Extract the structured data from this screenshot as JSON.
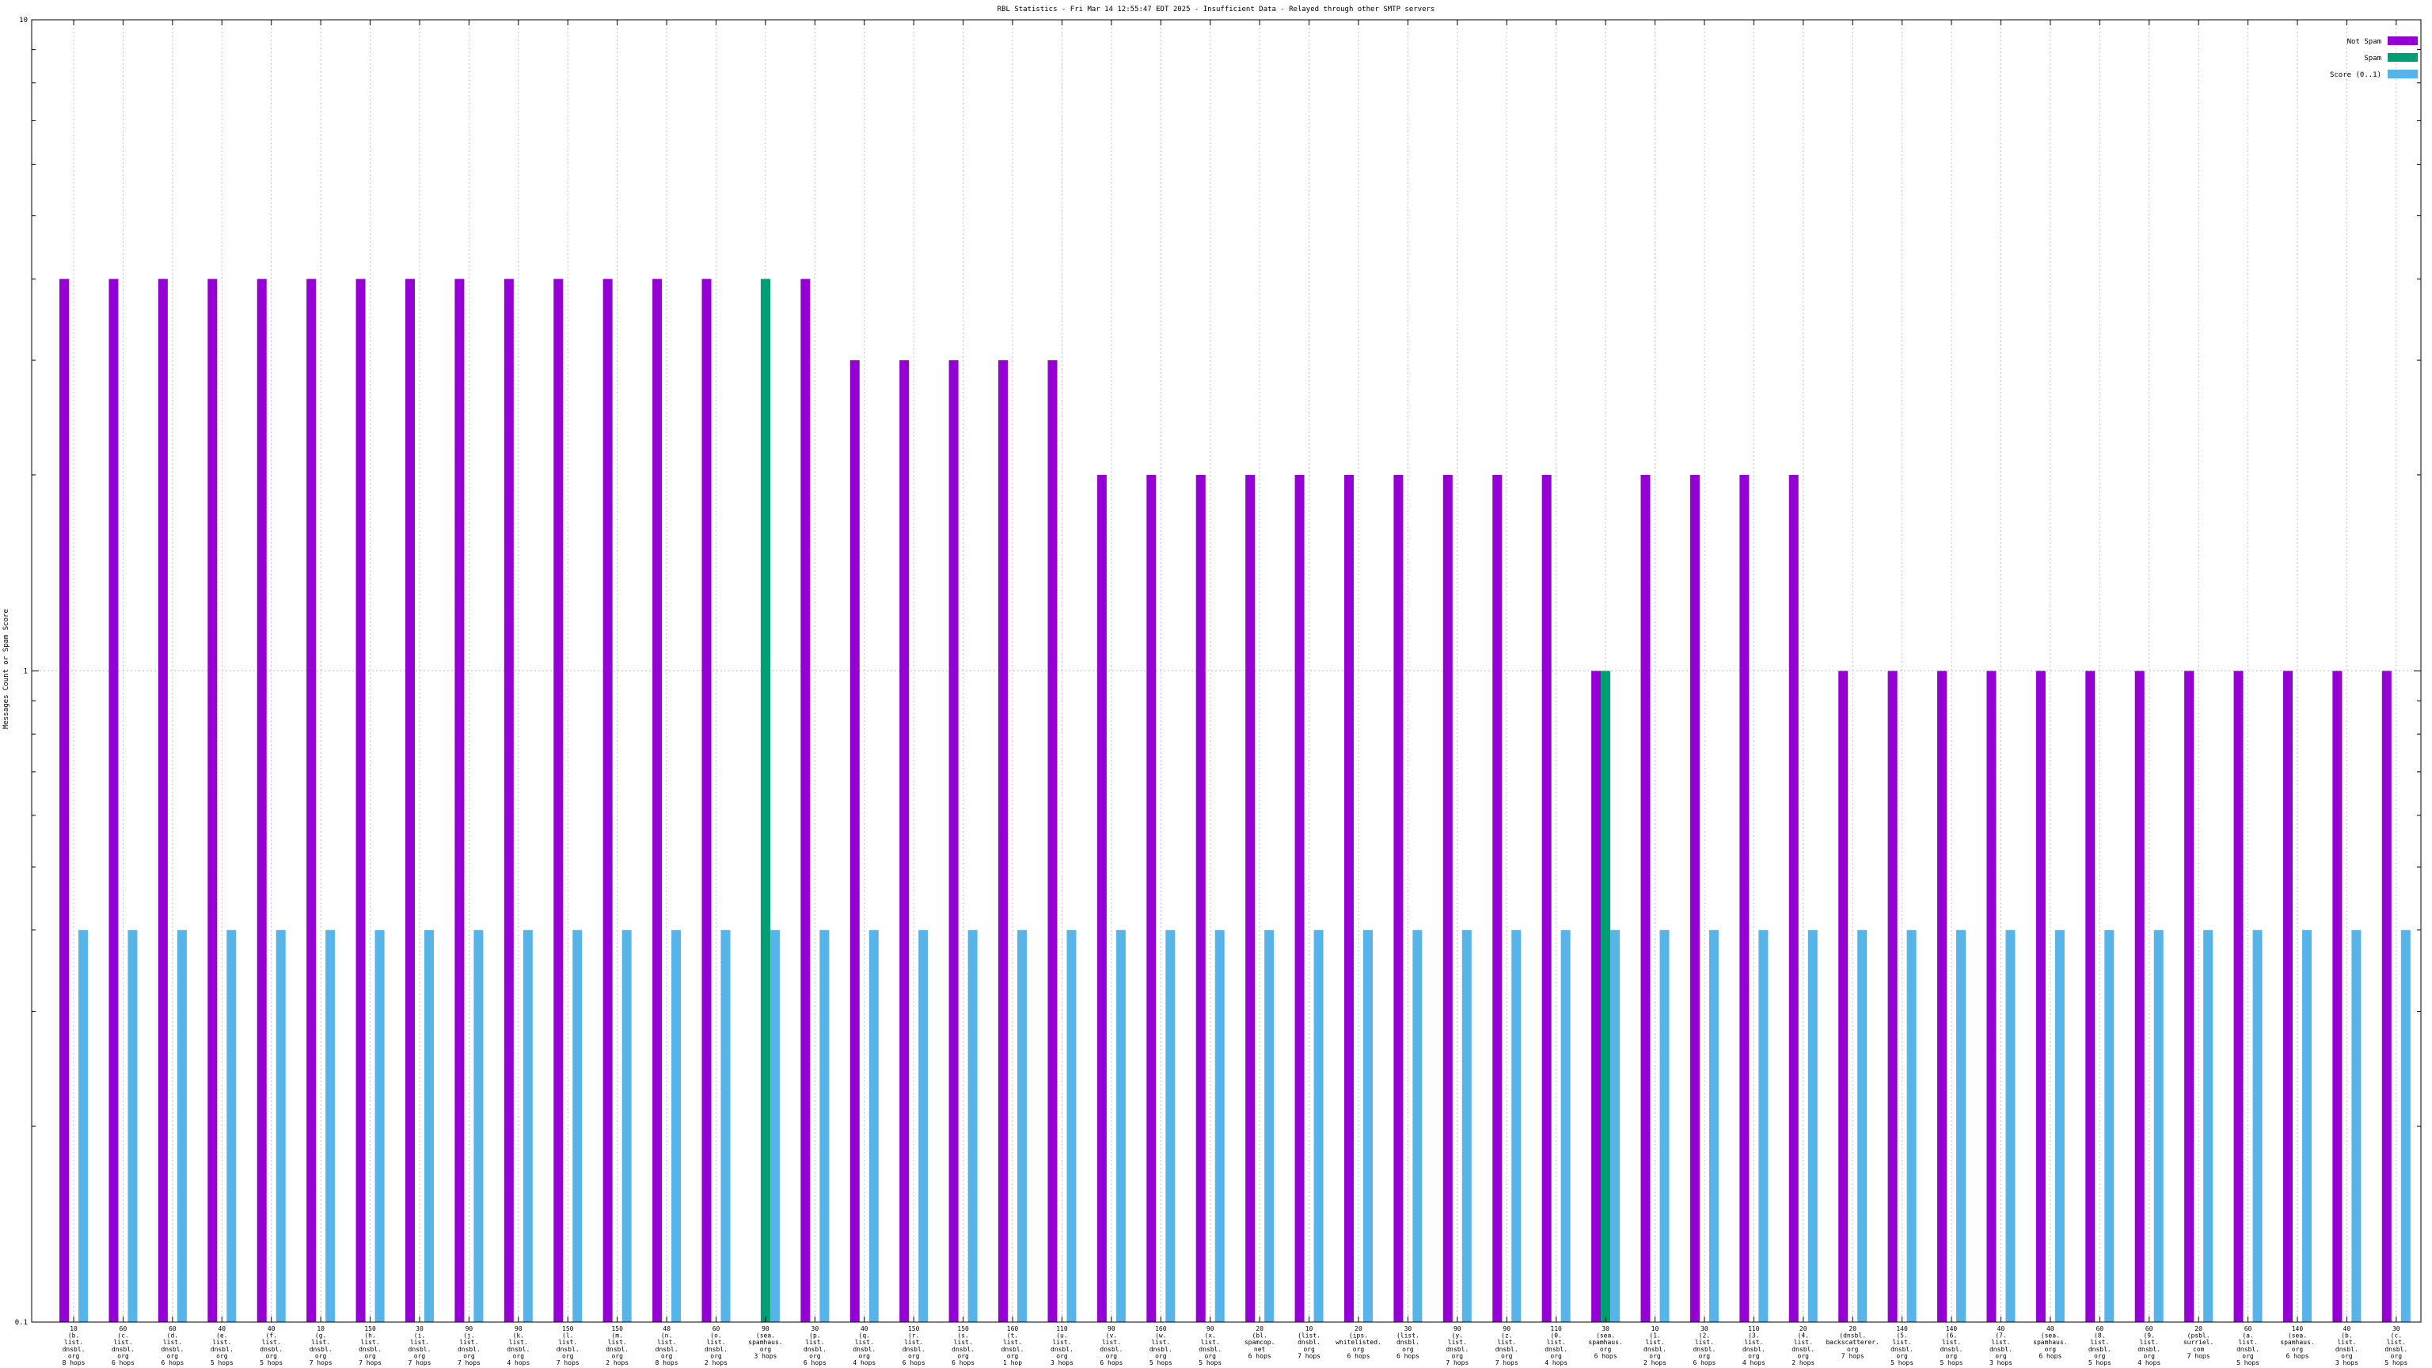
{
  "chart_data": {
    "type": "bar",
    "title": "RBL Statistics - Fri Mar 14 12:55:47 EDT 2025 - Insufficient Data - Relayed through other SMTP servers",
    "ylabel": "Messages Count or Spam Score",
    "y_scale": "log",
    "ylim": [
      0.1,
      10
    ],
    "y_tick_labels": [
      {
        "value": 10,
        "label": "10"
      },
      {
        "value": 1,
        "label": "1"
      },
      {
        "value": 0.1,
        "label": "0.1"
      }
    ],
    "grid": true,
    "legend_position": "top-right",
    "colors": {
      "not_spam": "#9400d3",
      "spam": "#009e73",
      "score": "#56b4e9"
    },
    "series": [
      {
        "name": "Not Spam",
        "color": "#9400d3"
      },
      {
        "name": "Spam",
        "color": "#009e73"
      },
      {
        "name": "Score (0..1)",
        "color": "#56b4e9"
      }
    ],
    "categories": [
      [
        "10",
        "(b.",
        "list.",
        "dnsbl.",
        "org",
        "8 hops"
      ],
      [
        "60",
        "(c.",
        "list.",
        "dnsbl.",
        "org",
        "6 hops"
      ],
      [
        "60",
        "(d.",
        "list.",
        "dnsbl.",
        "org",
        "6 hops"
      ],
      [
        "40",
        "(e.",
        "list.",
        "dnsbl.",
        "org",
        "5 hops"
      ],
      [
        "40",
        "(f.",
        "list.",
        "dnsbl.",
        "org",
        "5 hops"
      ],
      [
        "10",
        "(g.",
        "list.",
        "dnsbl.",
        "org",
        "7 hops"
      ],
      [
        "150",
        "(h.",
        "list.",
        "dnsbl.",
        "org",
        "7 hops"
      ],
      [
        "30",
        "(i.",
        "list.",
        "dnsbl.",
        "org",
        "7 hops"
      ],
      [
        "90",
        "(j.",
        "list.",
        "dnsbl.",
        "org",
        "7 hops"
      ],
      [
        "90",
        "(k.",
        "list.",
        "dnsbl.",
        "org",
        "4 hops"
      ],
      [
        "150",
        "(l.",
        "list.",
        "dnsbl.",
        "org",
        "7 hops"
      ],
      [
        "150",
        "(m.",
        "list.",
        "dnsbl.",
        "org",
        "2 hops"
      ],
      [
        "40",
        "(n.",
        "list.",
        "dnsbl.",
        "org",
        "8 hops"
      ],
      [
        "60",
        "(o.",
        "list.",
        "dnsbl.",
        "org",
        "2 hops"
      ],
      [
        "90",
        "(sea.",
        "spamhaus.",
        "org",
        "3 hops"
      ],
      [
        "30",
        "(p.",
        "list.",
        "dnsbl.",
        "org",
        "6 hops"
      ],
      [
        "40",
        "(q.",
        "list.",
        "dnsbl.",
        "org",
        "4 hops"
      ],
      [
        "150",
        "(r.",
        "list.",
        "dnsbl.",
        "org",
        "6 hops"
      ],
      [
        "150",
        "(s.",
        "list.",
        "dnsbl.",
        "org",
        "6 hops"
      ],
      [
        "160",
        "(t.",
        "list.",
        "dnsbl.",
        "org",
        "1 hop"
      ],
      [
        "110",
        "(u.",
        "list.",
        "dnsbl.",
        "org",
        "3 hops"
      ],
      [
        "90",
        "(v.",
        "list.",
        "dnsbl.",
        "org",
        "6 hops"
      ],
      [
        "160",
        "(w.",
        "list.",
        "dnsbl.",
        "org",
        "5 hops"
      ],
      [
        "90",
        "(x.",
        "list.",
        "dnsbl.",
        "org",
        "5 hops"
      ],
      [
        "20",
        "(bl.",
        "spamcop.",
        "net",
        "6 hops"
      ],
      [
        "10",
        "(list.",
        "dnsbl.",
        "org",
        "7 hops"
      ],
      [
        "20",
        "(ips.",
        "whitelisted.",
        "org",
        "6 hops"
      ],
      [
        "30",
        "(list.",
        "dnsbl.",
        "org",
        "6 hops"
      ],
      [
        "90",
        "(y.",
        "list.",
        "dnsbl.",
        "org",
        "7 hops"
      ],
      [
        "90",
        "(z.",
        "list.",
        "dnsbl.",
        "org",
        "7 hops"
      ],
      [
        "110",
        "(0.",
        "list.",
        "dnsbl.",
        "org",
        "4 hops"
      ],
      [
        "30",
        "(sea.",
        "spamhaus.",
        "org",
        "6 hops"
      ],
      [
        "10",
        "(1.",
        "list.",
        "dnsbl.",
        "org",
        "2 hops"
      ],
      [
        "30",
        "(2.",
        "list.",
        "dnsbl.",
        "org",
        "6 hops"
      ],
      [
        "110",
        "(3.",
        "list.",
        "dnsbl.",
        "org",
        "4 hops"
      ],
      [
        "20",
        "(4.",
        "list.",
        "dnsbl.",
        "org",
        "2 hops"
      ],
      [
        "20",
        "(dnsbl.",
        "backscatterer.",
        "org",
        "7 hops"
      ],
      [
        "140",
        "(5.",
        "list.",
        "dnsbl.",
        "org",
        "5 hops"
      ],
      [
        "140",
        "(6.",
        "list.",
        "dnsbl.",
        "org",
        "5 hops"
      ],
      [
        "40",
        "(7.",
        "list.",
        "dnsbl.",
        "org",
        "3 hops"
      ],
      [
        "40",
        "(sea.",
        "spamhaus.",
        "org",
        "6 hops"
      ],
      [
        "60",
        "(8.",
        "list.",
        "dnsbl.",
        "org",
        "5 hops"
      ],
      [
        "60",
        "(9.",
        "list.",
        "dnsbl.",
        "org",
        "4 hops"
      ],
      [
        "20",
        "(psbl.",
        "surriel.",
        "com",
        "7 hops"
      ],
      [
        "60",
        "(a.",
        "list.",
        "dnsbl.",
        "org",
        "5 hops"
      ],
      [
        "140",
        "(sea.",
        "spamhaus.",
        "org",
        "6 hops"
      ],
      [
        "40",
        "(b.",
        "list.",
        "dnsbl.",
        "org",
        "3 hops"
      ],
      [
        "30",
        "(c.",
        "list.",
        "dnsbl.",
        "org",
        "5 hops"
      ]
    ],
    "not_spam": [
      4,
      4,
      4,
      4,
      4,
      4,
      4,
      4,
      4,
      4,
      4,
      4,
      4,
      4,
      0,
      4,
      3,
      3,
      3,
      3,
      3,
      2,
      2,
      2,
      2,
      2,
      2,
      2,
      2,
      2,
      2,
      1,
      2,
      2,
      2,
      2,
      1,
      1,
      1,
      1,
      1,
      1,
      1,
      1,
      1,
      1,
      1,
      1
    ],
    "spam": [
      0,
      0,
      0,
      0,
      0,
      0,
      0,
      0,
      0,
      0,
      0,
      0,
      0,
      0,
      4,
      0,
      0,
      0,
      0,
      0,
      0,
      0,
      0,
      0,
      0,
      0,
      0,
      0,
      0,
      0,
      0,
      1,
      0,
      0,
      0,
      0,
      0,
      0,
      0,
      0,
      0,
      0,
      0,
      0,
      0,
      0,
      0,
      0
    ],
    "score": [
      0.4,
      0.4,
      0.4,
      0.4,
      0.4,
      0.4,
      0.4,
      0.4,
      0.4,
      0.4,
      0.4,
      0.4,
      0.4,
      0.4,
      0.4,
      0.4,
      0.4,
      0.4,
      0.4,
      0.4,
      0.4,
      0.4,
      0.4,
      0.4,
      0.4,
      0.4,
      0.4,
      0.4,
      0.4,
      0.4,
      0.4,
      0.4,
      0.4,
      0.4,
      0.4,
      0.4,
      0.4,
      0.4,
      0.4,
      0.4,
      0.4,
      0.4,
      0.4,
      0.4,
      0.4,
      0.4,
      0.4,
      0.4
    ]
  }
}
